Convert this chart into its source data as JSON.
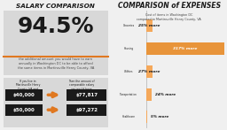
{
  "left_title": "SALARY COMPARISON",
  "big_percent": "94.5%",
  "small_text": "the additional amount you would have to earn\nannually in Washington DC to be able to afford\nthe same items in Martinsville Henry County, VA",
  "left_label1": "If you live in\nMartinsville Henry\nCounty, VA and\nyour annual\nsalary is:",
  "left_label2": "Then the amount of\ncomparable salary\nyou would have\nto earn in\nWashington DC is:",
  "salary_pairs": [
    [
      "$40,000",
      "$77,817"
    ],
    [
      "$50,000",
      "$97,272"
    ]
  ],
  "right_title": "COMPARISON of EXPENSES",
  "right_subtitle": "Cost of items in Washington DC\ncompared to Martinsville Henry County, VA",
  "categories": [
    "Groceries",
    "Housing",
    "Utilities",
    "Transportation",
    "Healthcare"
  ],
  "values": [
    25,
    317,
    27,
    24,
    5
  ],
  "labels": [
    "25% more",
    "317% more",
    "27% more",
    "24% more",
    "5% more"
  ],
  "bar_color_normal": "#f5a85a",
  "bar_color_housing": "#e8943a",
  "bg_panel": "#d8d8d8",
  "bg_main": "#f0f0f0",
  "bg_right": "#ffffff",
  "text_dark": "#1a1a1a",
  "text_gray": "#444444",
  "box_bg": "#1a1a1a",
  "box_text": "#ffffff",
  "arrow_color": "#e07820",
  "orange_line_color": "#e07820"
}
